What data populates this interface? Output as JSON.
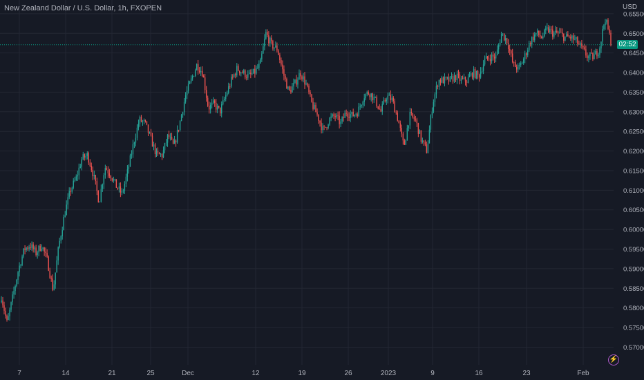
{
  "title": "New Zealand Dollar / U.S. Dollar, 1h, FXOPEN",
  "currency": "USD",
  "countdown": "02:52",
  "colors": {
    "background": "#161a25",
    "up": "#26a69a",
    "down": "#ef5350",
    "grid": "#232733",
    "axis_text": "#b2b5be",
    "price_line": "#089981"
  },
  "chart_data": {
    "type": "candlestick",
    "symbol": "NZDUSD",
    "interval": "1h",
    "source": "FXOPEN",
    "ylabel": "USD",
    "ylim": [
      0.5655,
      0.6585
    ],
    "current_price": 0.6471,
    "y_ticks": [
      "0.65500",
      "0.65000",
      "0.64500",
      "0.64000",
      "0.63500",
      "0.63000",
      "0.62500",
      "0.62000",
      "0.61500",
      "0.61000",
      "0.60500",
      "0.60000",
      "0.59500",
      "0.59000",
      "0.58500",
      "0.58000",
      "0.57500",
      "0.57000"
    ],
    "x_ticks": [
      "7",
      "14",
      "21",
      "25",
      "Dec",
      "12",
      "19",
      "26",
      "2023",
      "9",
      "16",
      "23",
      "Feb"
    ],
    "price_path": [
      [
        0.583,
        0.579
      ],
      [
        0.576,
        0.577
      ],
      [
        0.583,
        0.578
      ],
      [
        0.59,
        0.587
      ],
      [
        0.595,
        0.592
      ],
      [
        0.596,
        0.593
      ],
      [
        0.594,
        0.597
      ],
      [
        0.596,
        0.599
      ],
      [
        0.592,
        0.588
      ],
      [
        0.5845,
        0.586
      ],
      [
        0.596,
        0.6
      ],
      [
        0.604,
        0.606
      ],
      [
        0.61,
        0.608
      ],
      [
        0.613,
        0.612
      ],
      [
        0.618,
        0.615
      ],
      [
        0.619,
        0.617
      ],
      [
        0.614,
        0.609
      ],
      [
        0.607,
        0.611
      ],
      [
        0.616,
        0.618
      ],
      [
        0.614,
        0.61
      ],
      [
        0.611,
        0.609
      ],
      [
        0.609,
        0.612
      ],
      [
        0.615,
        0.618
      ],
      [
        0.622,
        0.624
      ],
      [
        0.628,
        0.626
      ],
      [
        0.627,
        0.625
      ],
      [
        0.623,
        0.622
      ],
      [
        0.619,
        0.6165
      ],
      [
        0.619,
        0.621
      ],
      [
        0.624,
        0.625
      ],
      [
        0.621,
        0.62
      ],
      [
        0.627,
        0.631
      ],
      [
        0.634,
        0.637
      ],
      [
        0.638,
        0.641
      ],
      [
        0.642,
        0.644
      ],
      [
        0.64,
        0.635
      ],
      [
        0.631,
        0.63
      ],
      [
        0.632,
        0.631
      ],
      [
        0.63,
        0.632
      ],
      [
        0.634,
        0.636
      ],
      [
        0.638,
        0.639
      ],
      [
        0.641,
        0.642
      ],
      [
        0.64,
        0.638
      ],
      [
        0.639,
        0.641
      ],
      [
        0.64,
        0.639
      ],
      [
        0.642,
        0.64
      ],
      [
        0.65,
        0.648
      ],
      [
        0.647,
        0.644
      ],
      [
        0.646,
        0.642
      ],
      [
        0.64,
        0.637
      ],
      [
        0.635,
        0.633
      ],
      [
        0.637,
        0.638
      ],
      [
        0.64,
        0.639
      ],
      [
        0.637,
        0.634
      ],
      [
        0.632,
        0.63
      ],
      [
        0.629,
        0.627
      ],
      [
        0.625,
        0.624
      ],
      [
        0.628,
        0.63
      ],
      [
        0.629,
        0.626
      ],
      [
        0.627,
        0.629
      ],
      [
        0.63,
        0.628
      ],
      [
        0.629,
        0.627
      ],
      [
        0.63,
        0.632
      ],
      [
        0.634,
        0.633
      ],
      [
        0.635,
        0.634
      ],
      [
        0.633,
        0.632
      ],
      [
        0.63,
        0.632
      ],
      [
        0.634,
        0.634
      ],
      [
        0.633,
        0.631
      ],
      [
        0.628,
        0.623
      ],
      [
        0.621,
        0.625
      ],
      [
        0.629,
        0.63
      ],
      [
        0.628,
        0.626
      ],
      [
        0.623,
        0.621
      ],
      [
        0.62,
        0.626
      ],
      [
        0.632,
        0.635
      ],
      [
        0.638,
        0.639
      ],
      [
        0.638,
        0.637
      ],
      [
        0.638,
        0.637
      ],
      [
        0.639,
        0.637
      ],
      [
        0.638,
        0.636
      ],
      [
        0.638,
        0.639
      ],
      [
        0.64,
        0.637
      ],
      [
        0.639,
        0.641
      ],
      [
        0.643,
        0.642
      ],
      [
        0.644,
        0.641
      ],
      [
        0.644,
        0.647
      ],
      [
        0.65,
        0.652
      ],
      [
        0.648,
        0.643
      ],
      [
        0.642,
        0.639
      ],
      [
        0.641,
        0.643
      ],
      [
        0.644,
        0.645
      ],
      [
        0.648,
        0.649
      ],
      [
        0.65,
        0.651
      ],
      [
        0.649,
        0.65
      ],
      [
        0.651,
        0.649
      ],
      [
        0.65,
        0.649
      ],
      [
        0.65,
        0.651
      ],
      [
        0.649,
        0.648
      ],
      [
        0.649,
        0.65
      ],
      [
        0.648,
        0.647
      ],
      [
        0.646,
        0.643
      ],
      [
        0.644,
        0.645
      ],
      [
        0.644,
        0.642
      ],
      [
        0.646,
        0.652
      ],
      [
        0.654,
        0.651
      ],
      [
        0.648,
        0.647
      ]
    ]
  }
}
